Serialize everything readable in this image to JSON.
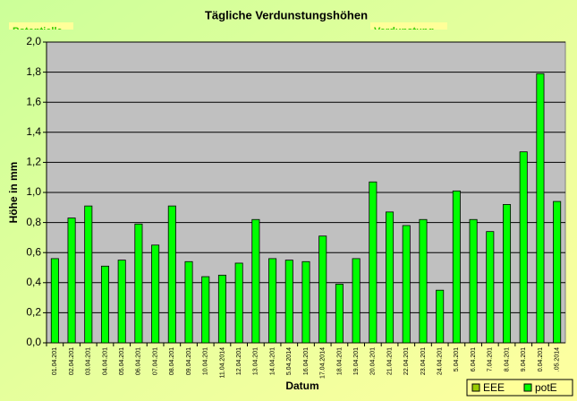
{
  "chart_data": {
    "type": "bar",
    "title": "Tägliche Verdunstungshöhen",
    "annotations": [
      "Potentielle",
      "Verdunstung"
    ],
    "y_label": "Höhe in mm",
    "x_label": "Datum",
    "categories": [
      "01.04.201",
      "02.04.201",
      "03.04.201",
      "04.04.201",
      "05.04.201",
      "06.04.201",
      "07.04.201",
      "08.04.201",
      "09.04.201",
      "10.04.201",
      "11.04.2014",
      "12.04.201",
      "13.04.201",
      "14.04.201",
      "5.04.2014",
      "16.04.201",
      "17.04.2014",
      "18.04.201",
      "19.04.201",
      "20.04.201",
      "21.04.201",
      "22.04.201",
      "23.04.201",
      "24.04.201",
      "5.04.201",
      "6.04.201",
      "7.04.201",
      "8.04.201",
      "9.04.201",
      "0.04.201",
      ".05.2014"
    ],
    "series": [
      {
        "name": "EEE",
        "color": "#99cc00",
        "values": [
          null,
          null,
          null,
          null,
          null,
          null,
          null,
          null,
          null,
          null,
          null,
          null,
          null,
          null,
          null,
          null,
          null,
          null,
          null,
          null,
          null,
          null,
          null,
          null,
          null,
          null,
          null,
          null,
          null,
          null,
          null
        ]
      },
      {
        "name": "potE",
        "color": "#00ff00",
        "values": [
          0.56,
          0.83,
          0.91,
          0.51,
          0.55,
          0.79,
          0.65,
          0.91,
          0.54,
          0.44,
          0.45,
          0.53,
          0.82,
          0.56,
          0.55,
          0.54,
          0.71,
          0.39,
          0.56,
          1.07,
          0.87,
          0.78,
          0.82,
          0.35,
          1.01,
          0.82,
          0.74,
          0.92,
          1.27,
          1.79,
          0.94
        ]
      }
    ],
    "ylim": [
      0,
      2
    ],
    "yticks": [
      {
        "value": 0,
        "label": "0,0"
      },
      {
        "value": 0.2,
        "label": "0,2"
      },
      {
        "value": 0.4,
        "label": "0,4"
      },
      {
        "value": 0.6,
        "label": "0,6"
      },
      {
        "value": 0.8,
        "label": "0,8"
      },
      {
        "value": 1,
        "label": "1,0"
      },
      {
        "value": 1.2,
        "label": "1,2"
      },
      {
        "value": 1.4,
        "label": "1,4"
      },
      {
        "value": 1.6,
        "label": "1,6"
      },
      {
        "value": 1.8,
        "label": "1,8"
      },
      {
        "value": 2,
        "label": "2,0"
      }
    ],
    "grid": true,
    "legend": "bottom-right"
  }
}
